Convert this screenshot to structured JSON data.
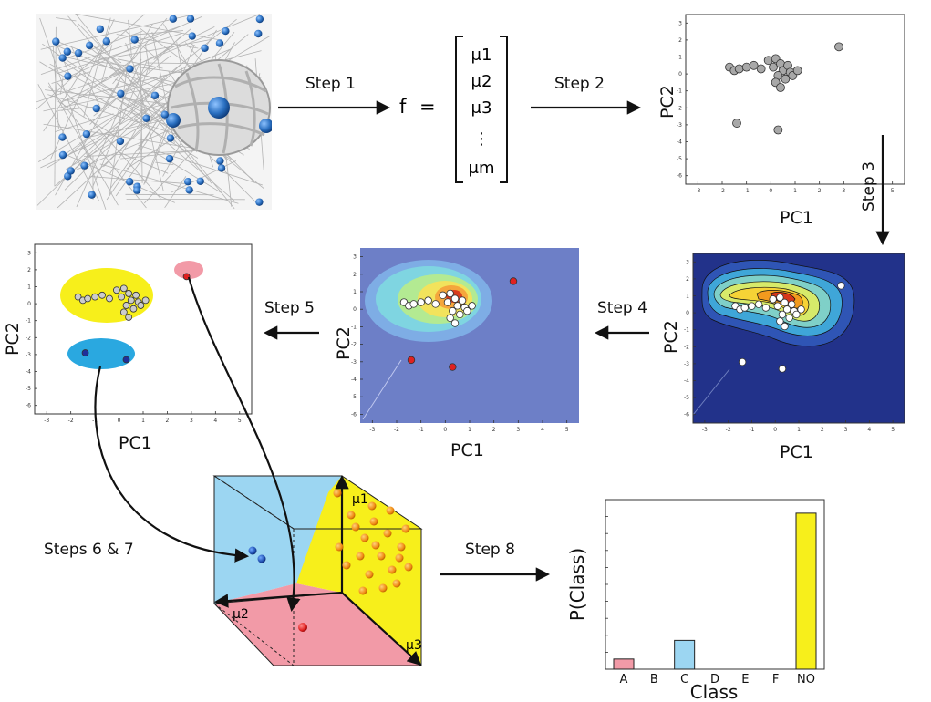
{
  "steps": {
    "s1": "Step 1",
    "s2": "Step 2",
    "s3": "Step 3",
    "s4": "Step 4",
    "s5": "Step 5",
    "s67": "Steps 6 & 7",
    "s8": "Step 8"
  },
  "feature_vector": {
    "lhs": "f",
    "eq": "=",
    "entries": [
      "μ1",
      "μ2",
      "μ3",
      "⋮",
      "μm"
    ]
  },
  "pca_axes": {
    "xlabel": "PC1",
    "ylabel": "PC2",
    "xticks": [
      "-3",
      "-2",
      "-1",
      "0",
      "1",
      "2",
      "3",
      "4",
      "5"
    ],
    "yticks": [
      "3",
      "2",
      "1",
      "0",
      "-1",
      "-2",
      "-3",
      "-4",
      "-5",
      "-6"
    ]
  },
  "cube_axes": {
    "a1": "μ1",
    "a2": "μ2",
    "a3": "μ3"
  },
  "chart_data": {
    "type": "bar",
    "categories": [
      "A",
      "B",
      "C",
      "D",
      "E",
      "F",
      "NO"
    ],
    "values": [
      0.06,
      0,
      0.17,
      0,
      0,
      0,
      0.92
    ],
    "ylim": [
      0,
      1
    ],
    "colors": [
      "#f29aa7",
      "#ffffff",
      "#9cd6f2",
      "#ffffff",
      "#ffffff",
      "#ffffff",
      "#f7ef1b"
    ],
    "xlabel": "Class",
    "ylabel": "P(Class)"
  },
  "colors": {
    "blue_node": "#2a6fc0",
    "red_point": "#e02020",
    "yellow_region": "#f7ef1b",
    "cyan_region": "#9cd6f2",
    "pink_region": "#f29aa7"
  }
}
